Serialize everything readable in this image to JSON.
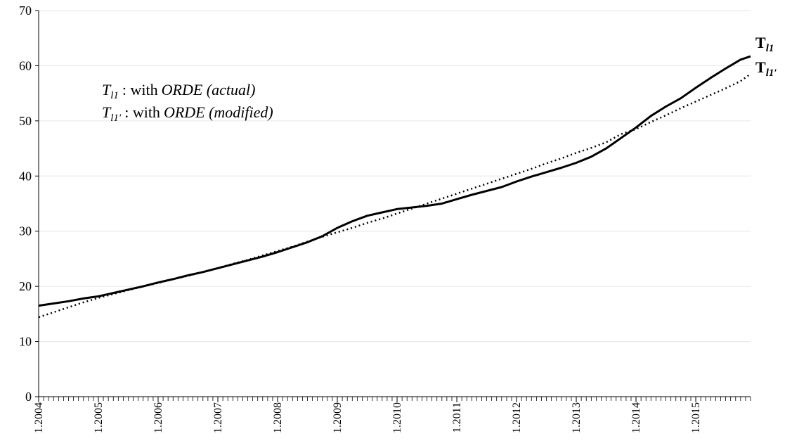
{
  "chart_data": {
    "type": "line",
    "xlim": [
      2004,
      2015.917
    ],
    "xticks": [
      {
        "value": 2004,
        "label": "1.2004"
      },
      {
        "value": 2005,
        "label": "1.2005"
      },
      {
        "value": 2006,
        "label": "1.2006"
      },
      {
        "value": 2007,
        "label": "1.2007"
      },
      {
        "value": 2008,
        "label": "1.2008"
      },
      {
        "value": 2009,
        "label": "1.2009"
      },
      {
        "value": 2010,
        "label": "1.2010"
      },
      {
        "value": 2011,
        "label": "1.2011"
      },
      {
        "value": 2012,
        "label": "1.2012"
      },
      {
        "value": 2013,
        "label": "1.2013"
      },
      {
        "value": 2014,
        "label": "1.2014"
      },
      {
        "value": 2015,
        "label": "1.2015"
      }
    ],
    "ylim": [
      0,
      70
    ],
    "yticks": [
      0,
      10,
      20,
      30,
      40,
      50,
      60,
      70
    ],
    "grid": true,
    "x": [
      2004,
      2004.25,
      2004.5,
      2004.75,
      2005,
      2005.25,
      2005.5,
      2005.75,
      2006,
      2006.25,
      2006.5,
      2006.75,
      2007,
      2007.25,
      2007.5,
      2007.75,
      2008,
      2008.25,
      2008.5,
      2008.75,
      2009,
      2009.25,
      2009.5,
      2009.75,
      2010,
      2010.25,
      2010.5,
      2010.75,
      2011,
      2011.25,
      2011.5,
      2011.75,
      2012,
      2012.25,
      2012.5,
      2012.75,
      2013,
      2013.25,
      2013.5,
      2013.75,
      2014,
      2014.25,
      2014.5,
      2014.75,
      2015,
      2015.25,
      2015.5,
      2015.75,
      2015.917
    ],
    "series": [
      {
        "label": "T",
        "subscript": "l1",
        "color": "#000000",
        "style": "solid",
        "legend": {
          "symbol": "T",
          "subscript": "l1",
          "text": ": with",
          "emphasis": "ORDE (actual)"
        },
        "values": [
          16.5,
          16.9,
          17.3,
          17.8,
          18.2,
          18.8,
          19.4,
          20.0,
          20.7,
          21.3,
          22.0,
          22.6,
          23.3,
          24.0,
          24.7,
          25.4,
          26.2,
          27.1,
          28.0,
          29.1,
          30.6,
          31.8,
          32.8,
          33.4,
          34.0,
          34.3,
          34.6,
          35.0,
          35.8,
          36.6,
          37.3,
          38.0,
          39.0,
          39.9,
          40.7,
          41.5,
          42.4,
          43.5,
          45.0,
          46.9,
          48.8,
          50.9,
          52.6,
          54.1,
          56.0,
          57.8,
          59.5,
          61.1,
          61.7
        ]
      },
      {
        "label": "T",
        "subscript": "l1′",
        "color": "#000000",
        "style": "dotted",
        "legend": {
          "symbol": "T",
          "subscript": "l1′",
          "text": ": with",
          "emphasis": "ORDE (modified)"
        },
        "values": [
          14.4,
          15.3,
          16.2,
          17.1,
          17.9,
          18.6,
          19.3,
          20.0,
          20.6,
          21.3,
          21.9,
          22.6,
          23.3,
          24.1,
          24.8,
          25.6,
          26.4,
          27.2,
          28.1,
          29.0,
          29.8,
          30.6,
          31.5,
          32.3,
          33.2,
          34.1,
          35.0,
          35.9,
          36.8,
          37.7,
          38.6,
          39.5,
          40.4,
          41.3,
          42.3,
          43.2,
          44.2,
          45.1,
          46.1,
          47.6,
          48.5,
          49.8,
          51.0,
          52.3,
          53.5,
          54.7,
          55.9,
          57.2,
          58.5
        ]
      }
    ]
  }
}
